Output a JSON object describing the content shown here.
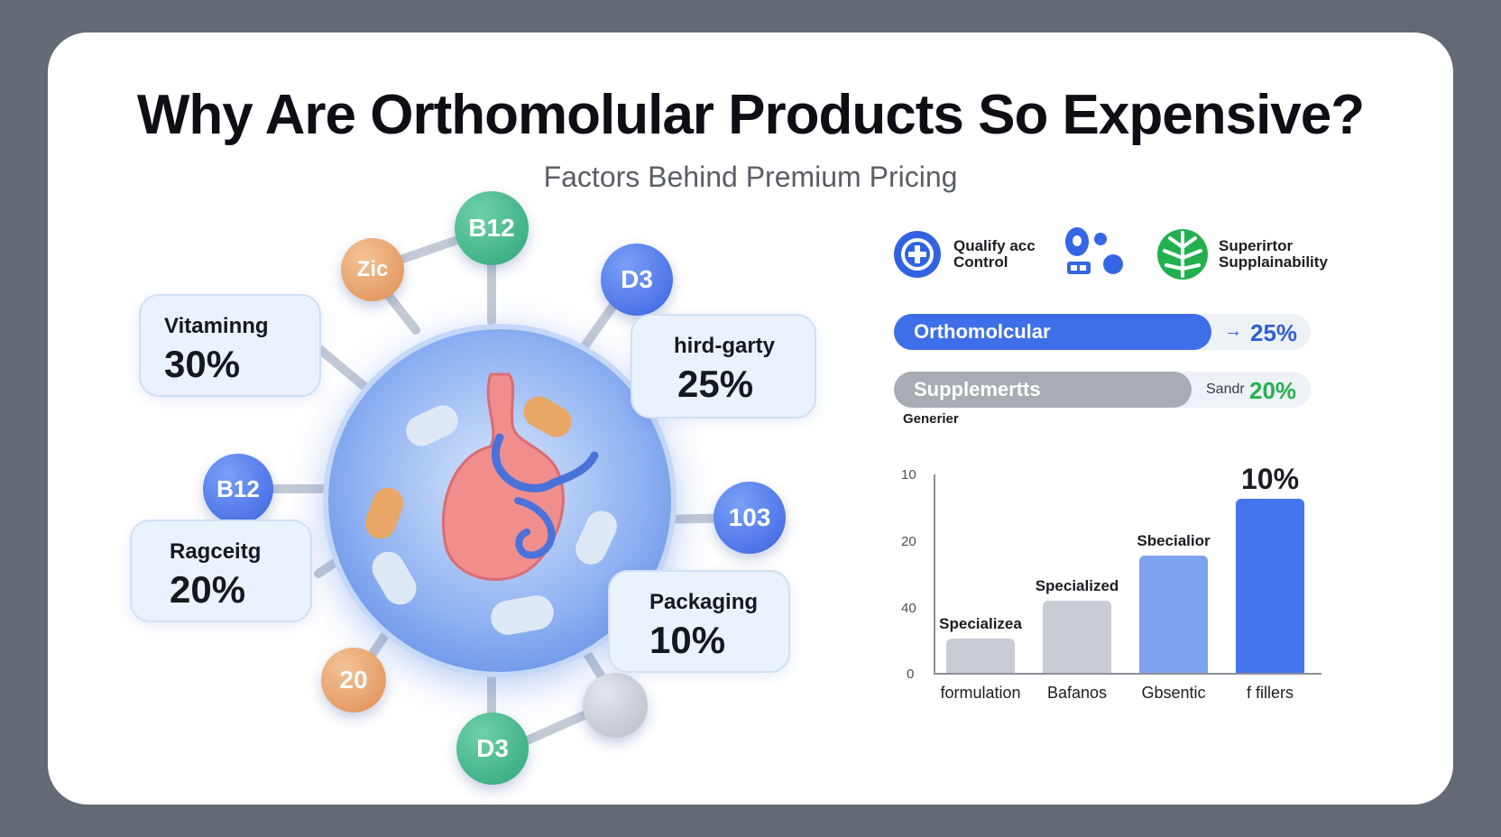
{
  "header": {
    "title": "Why Are Orthomolular Products So Expensive?",
    "subtitle": "Factors Behind Premium Pricing"
  },
  "molecule": {
    "nodes": [
      "B12",
      "Zic",
      "D3",
      "B12",
      "103",
      "20",
      "D3"
    ],
    "boxes": [
      {
        "name": "Vitaminng",
        "pct": "30%"
      },
      {
        "name": "hird-garty",
        "pct": "25%"
      },
      {
        "name": "Ragceitg",
        "pct": "20%"
      },
      {
        "name": "Packaging",
        "pct": "10%"
      }
    ]
  },
  "legend": {
    "items": [
      {
        "icon": "shield-plus-icon",
        "line1": "Qualify acc",
        "line2": "Control"
      },
      {
        "icon": "molecule-cluster-icon"
      },
      {
        "icon": "leaf-globe-icon",
        "line1": "Superirtor",
        "line2": "Supplainability"
      }
    ]
  },
  "comparison": {
    "rows": [
      {
        "label": "Orthomolcular",
        "arrow": "→",
        "value": "25%",
        "color": "#3e6fe8",
        "value_color": "#2f5fd6"
      },
      {
        "label": "Supplemertts",
        "prefix": "Sandr",
        "value": "20%",
        "color": "#a8acb3",
        "value_color": "#23b14d"
      }
    ],
    "note": "Generier"
  },
  "chart_data": {
    "type": "bar",
    "categories": [
      "formulation",
      "Bafanos",
      "Gbsentic",
      "f fillers"
    ],
    "bar_labels": [
      "Specializea",
      "Specialized",
      "Sbecialior",
      "10%"
    ],
    "values": [
      18,
      38,
      62,
      92
    ],
    "y_ticks": [
      "10",
      "20",
      "40",
      "0"
    ],
    "colors": [
      "#c9ccd3",
      "#c9ccd3",
      "#7fa2ee",
      "#4475ee"
    ]
  }
}
